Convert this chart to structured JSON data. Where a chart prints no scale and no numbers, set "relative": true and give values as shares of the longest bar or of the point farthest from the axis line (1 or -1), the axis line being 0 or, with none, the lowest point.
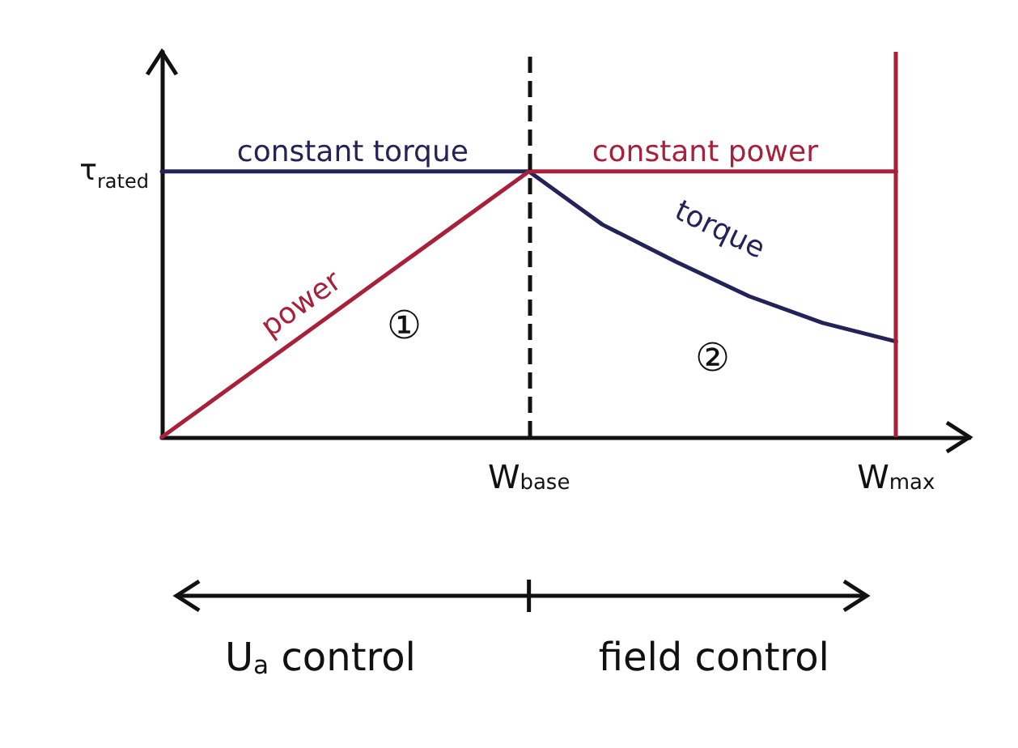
{
  "chart_data": {
    "type": "line",
    "relative": true,
    "categories": [
      null,
      null,
      null,
      null,
      null,
      "W$_{base}$",
      null,
      null,
      null,
      null,
      "W$_{max}$",
      null
    ],
    "series": [
      {
        "name": "torque",
        "color": "#23235a",
        "values": [
          1,
          1,
          1,
          1,
          1,
          1,
          0.8,
          0.66,
          0.53,
          0.43,
          0.36,
          null
        ]
      },
      {
        "name": "power",
        "color": "#a8203a",
        "values": [
          0,
          0.2,
          0.4,
          0.6,
          0.8,
          1,
          1,
          1,
          1,
          1,
          1,
          null
        ]
      }
    ],
    "ref_lines": [
      {
        "axis": "x",
        "value": "W$_{base}$",
        "color": "#111111",
        "line_style": "dashed"
      },
      {
        "axis": "x",
        "value": "W$_{max}$",
        "color": "#a8203a",
        "line_style": "solid"
      }
    ],
    "annotations": [
      "constant torque",
      "constant power",
      "①",
      "②",
      "τ$_{rated}$",
      "U$_{a}$ control",
      "field control"
    ]
  }
}
